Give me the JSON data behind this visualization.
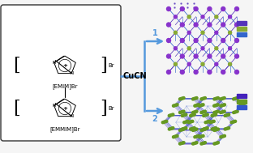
{
  "background_color": "#f5f5f5",
  "box_bg": "#ffffff",
  "box_edge": "#333333",
  "arrow_color": "#5599dd",
  "cucn_color": "#000000",
  "cucn_text": "CuCN",
  "cucn_fontsize": 7,
  "label1": "1",
  "label2": "2",
  "label_fontsize": 7,
  "emim_label": "[EMIM]Br",
  "emmim_label": "[EMMIM]Br",
  "sub_label_fontsize": 5,
  "br_fontsize": 5,
  "crystal1_purple": "#5533bb",
  "crystal1_blue": "#3366cc",
  "crystal1_green": "#88aa33",
  "crystal1_violet": "#8833cc",
  "crystal2_purple": "#4422bb",
  "crystal2_blue": "#3355cc",
  "crystal2_green": "#669922",
  "legend_colors": [
    "#5533bb",
    "#88aa33",
    "#3366cc",
    "#8833cc"
  ]
}
